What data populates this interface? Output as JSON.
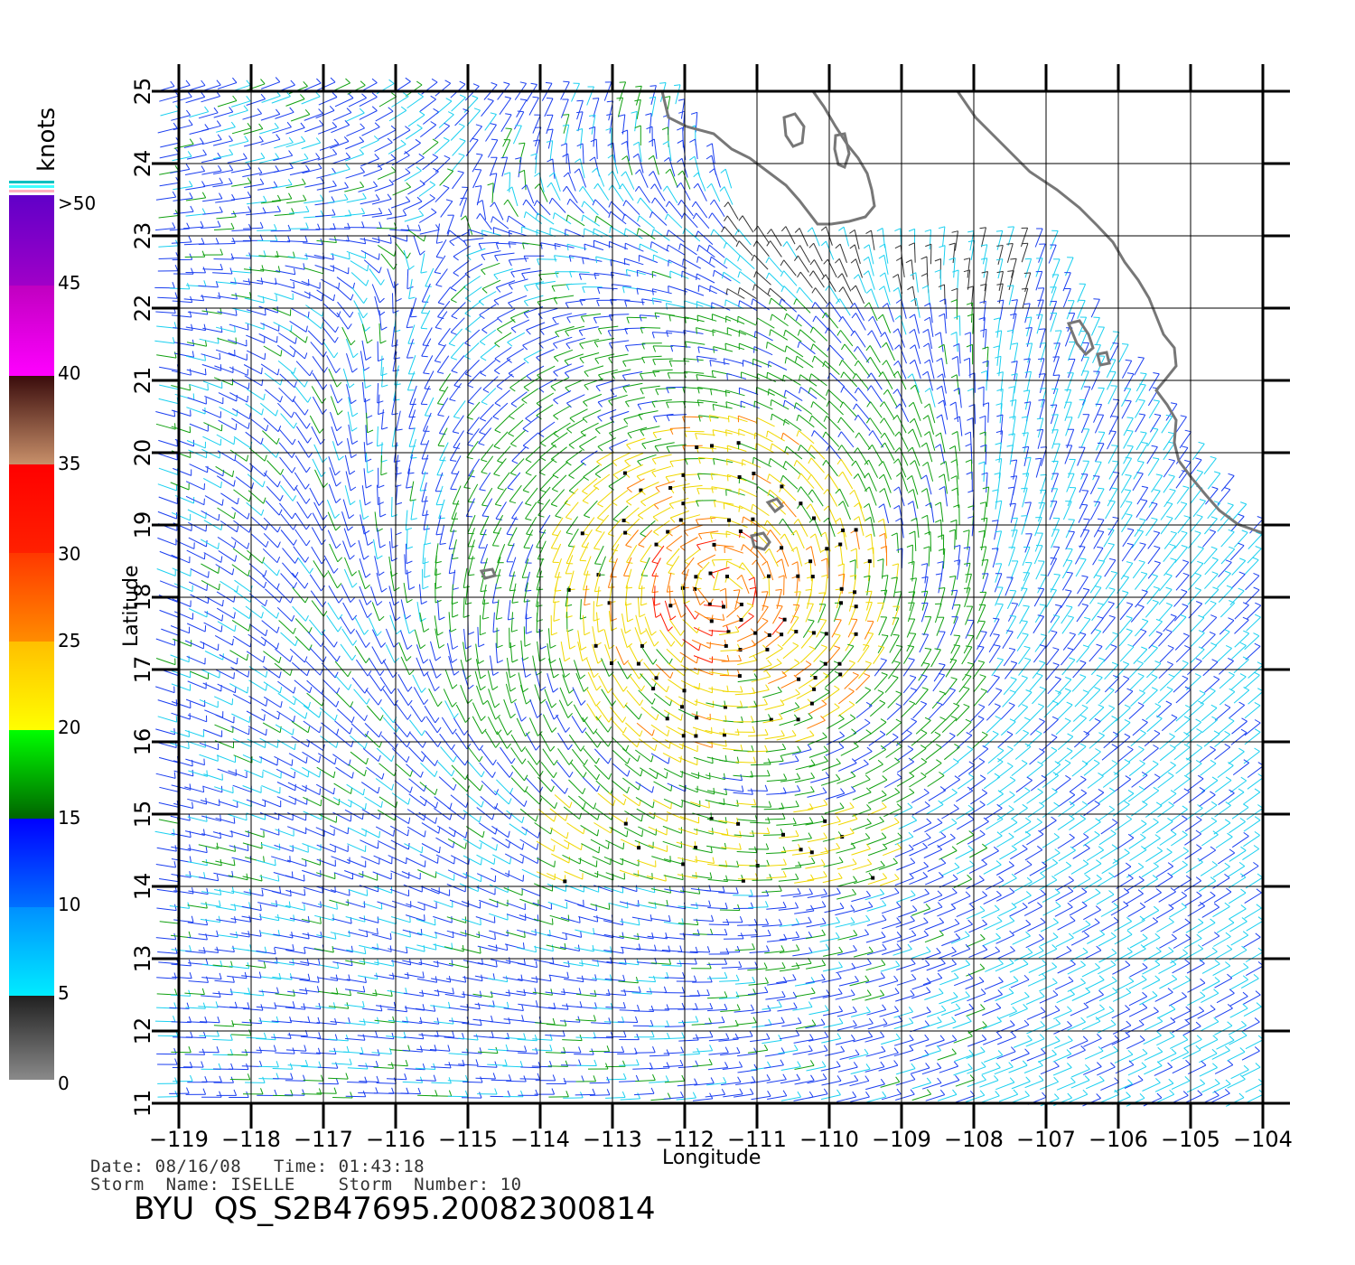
{
  "map": {
    "xlabel": "Longitude",
    "ylabel": "Latitude",
    "lon_range": [
      -119,
      -104
    ],
    "lat_range": [
      11,
      25
    ],
    "lon_ticks": [
      "−119",
      "−118",
      "−117",
      "−116",
      "−115",
      "−114",
      "−113",
      "−112",
      "−111",
      "−110",
      "−109",
      "−108",
      "−107",
      "−106",
      "−105",
      "−104"
    ],
    "lat_ticks": [
      "11",
      "12",
      "13",
      "14",
      "15",
      "16",
      "17",
      "18",
      "19",
      "20",
      "21",
      "22",
      "23",
      "24",
      "25"
    ],
    "grid": true,
    "coastline_color": "#777777"
  },
  "colorbar": {
    "title": "knots",
    "labels": [
      "0",
      "5",
      "10",
      "15",
      "20",
      "25",
      "30",
      "35",
      "40",
      "45",
      ">50"
    ],
    "colors": {
      "0-5": [
        "#888888",
        "#222222"
      ],
      "5-10": [
        "#00e5ff",
        "#0099ff"
      ],
      "10-15": [
        "#0066ff",
        "#0000ff"
      ],
      "15-20": [
        "#006600",
        "#00ff00"
      ],
      "20-25": [
        "#ffff00",
        "#ffc000"
      ],
      "25-30": [
        "#ff8800",
        "#ff3300"
      ],
      "30-35": [
        "#ff2200",
        "#ff0000"
      ],
      "35-40": [
        "#c08060",
        "#401010"
      ],
      "40-45": [
        "#ff00ff",
        "#cc00cc"
      ],
      "45-50": [
        "#aa00cc",
        "#6600cc"
      ]
    }
  },
  "footer": {
    "line1": "Date: 08/16/08   Time: 01:43:18",
    "line2": "Storm  Name: ISELLE    Storm  Number: 10",
    "title": "BYU  QS_S2B47695.20082300814"
  }
}
